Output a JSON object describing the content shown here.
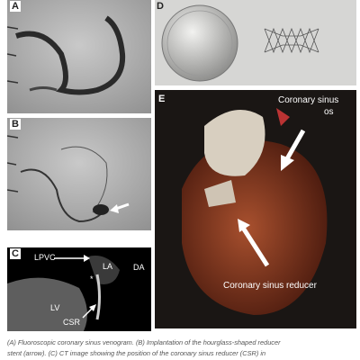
{
  "figure": {
    "panels": {
      "a": {
        "label": "A"
      },
      "b": {
        "label": "B"
      },
      "c": {
        "label": "C",
        "annotations": [
          "LPVC",
          "LA",
          "DA",
          "*",
          "LV",
          "CSR"
        ]
      },
      "d": {
        "label": "D"
      },
      "e": {
        "label": "E",
        "annotations": [
          "Coronary sinus",
          "os",
          "Coronary sinus reducer"
        ]
      }
    },
    "caption": [
      "(A) Fluoroscopic coronary sinus venogram. (B) Implantation of the hourglass-shaped reducer",
      "stent (arrow). (C) CT image showing the position of the coronary sinus reducer (CSR) in"
    ]
  }
}
